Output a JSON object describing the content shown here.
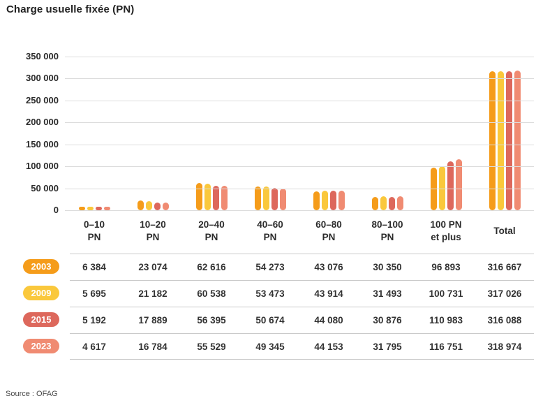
{
  "title": "Charge usuelle fixée (PN)",
  "source": "Source : OFAG",
  "colors": {
    "grid": "#dcdcdc",
    "separator": "#cacaca",
    "series_2003": "#F59C1A",
    "series_2009": "#FAC83C",
    "series_2015": "#DD685C",
    "series_2023": "#F08B72"
  },
  "chart_data": {
    "type": "bar",
    "title": "Charge usuelle fixée (PN)",
    "categories": [
      "0–10\nPN",
      "10–20\nPN",
      "20–40\nPN",
      "40–60\nPN",
      "60–80\nPN",
      "80–100\nPN",
      "100 PN\net plus",
      "Total"
    ],
    "series": [
      {
        "name": "2003",
        "color": "#F59C1A",
        "values": [
          6384,
          23074,
          62616,
          54273,
          43076,
          30350,
          96893,
          316667
        ]
      },
      {
        "name": "2009",
        "color": "#FAC83C",
        "values": [
          5695,
          21182,
          60538,
          53473,
          43914,
          31493,
          100731,
          317026
        ]
      },
      {
        "name": "2015",
        "color": "#DD685C",
        "values": [
          5192,
          17889,
          56395,
          50674,
          44080,
          30876,
          110983,
          316088
        ]
      },
      {
        "name": "2023",
        "color": "#F08B72",
        "values": [
          4617,
          16784,
          55529,
          49345,
          44153,
          31795,
          116751,
          318974
        ]
      }
    ],
    "ylim": [
      0,
      350000
    ],
    "yticks": [
      350000,
      300000,
      250000,
      200000,
      150000,
      100000,
      50000,
      0
    ],
    "ytick_labels": [
      "350 000",
      "300 000",
      "250 000",
      "200 000",
      "150 000",
      "100 000",
      "50 000",
      "0"
    ],
    "xlabel": "",
    "ylabel": "",
    "grid": true,
    "legend_position": "table-left"
  },
  "table": {
    "rows": [
      {
        "year": "2003",
        "values": [
          "6 384",
          "23 074",
          "62 616",
          "54 273",
          "43 076",
          "30 350",
          "96 893",
          "316 667"
        ]
      },
      {
        "year": "2009",
        "values": [
          "5 695",
          "21 182",
          "60 538",
          "53 473",
          "43 914",
          "31 493",
          "100 731",
          "317 026"
        ]
      },
      {
        "year": "2015",
        "values": [
          "5 192",
          "17 889",
          "56 395",
          "50 674",
          "44 080",
          "30 876",
          "110 983",
          "316 088"
        ]
      },
      {
        "year": "2023",
        "values": [
          "4 617",
          "16 784",
          "55 529",
          "49 345",
          "44 153",
          "31 795",
          "116 751",
          "318 974"
        ]
      }
    ]
  }
}
